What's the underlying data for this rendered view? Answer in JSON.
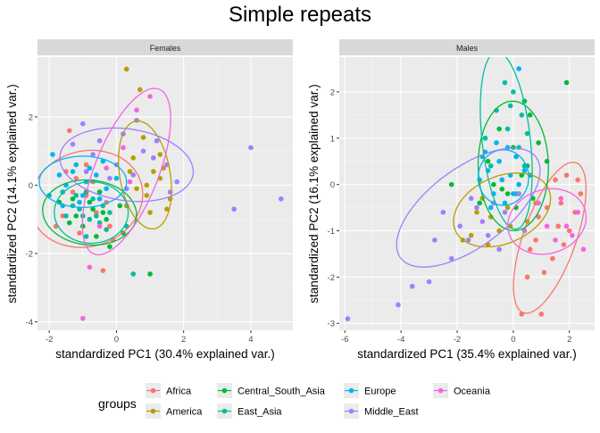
{
  "title": "Simple repeats",
  "legend": {
    "title": "groups",
    "items": [
      {
        "label": "Africa",
        "color": "#F8766D"
      },
      {
        "label": "America",
        "color": "#B79F00"
      },
      {
        "label": "Central_South_Asia",
        "color": "#00BA38"
      },
      {
        "label": "East_Asia",
        "color": "#00BF9F"
      },
      {
        "label": "Europe",
        "color": "#00B4F0"
      },
      {
        "label": "Middle_East",
        "color": "#9F7FFF"
      },
      {
        "label": "Oceania",
        "color": "#F564E3"
      }
    ]
  },
  "chart_data": [
    {
      "type": "scatter",
      "facet": "Females",
      "xlabel": "standardized PC1 (30.4% explained var.)",
      "ylabel": "standardized PC2 (14.1% explained var.)",
      "xlim": [
        -2.35,
        5.25
      ],
      "ylim": [
        -4.25,
        3.75
      ],
      "xticks": [
        -2,
        0,
        2,
        4
      ],
      "yticks": [
        -4,
        -2,
        0,
        2
      ],
      "groups": [
        {
          "name": "Africa",
          "color": "#F8766D",
          "ellipse": {
            "cx": -0.9,
            "cy": -0.4,
            "rx": 1.7,
            "ry": 1.4,
            "angle": 15
          },
          "points": [
            [
              -1.4,
              1.6
            ],
            [
              -0.9,
              0.6
            ],
            [
              -1.3,
              -0.2
            ],
            [
              -0.6,
              -0.8
            ],
            [
              -0.2,
              -1.2
            ],
            [
              -1.1,
              -1.4
            ],
            [
              -1.6,
              -0.9
            ],
            [
              -0.4,
              -2.5
            ],
            [
              -1.2,
              0.2
            ],
            [
              -0.9,
              -0.3
            ],
            [
              -0.3,
              -0.5
            ],
            [
              -1.5,
              0.4
            ],
            [
              -0.1,
              -1.6
            ],
            [
              -0.7,
              0.1
            ],
            [
              -1.8,
              -1.2
            ],
            [
              -0.8,
              -1.0
            ]
          ]
        },
        {
          "name": "America",
          "color": "#B79F00",
          "ellipse": {
            "cx": 0.85,
            "cy": 0.3,
            "rx": 0.75,
            "ry": 1.6,
            "angle": 10
          },
          "points": [
            [
              0.3,
              3.4
            ],
            [
              0.7,
              2.8
            ],
            [
              1.3,
              0.2
            ],
            [
              1.5,
              -0.7
            ],
            [
              0.5,
              0.8
            ],
            [
              1.1,
              0.4
            ],
            [
              0.9,
              -0.3
            ],
            [
              1.3,
              0.9
            ],
            [
              0.6,
              -0.1
            ],
            [
              0.8,
              1.4
            ],
            [
              1.6,
              -0.4
            ],
            [
              0.4,
              0.4
            ],
            [
              1.0,
              -0.8
            ],
            [
              1.4,
              0.5
            ],
            [
              0.3,
              -0.6
            ],
            [
              0.9,
              0.0
            ]
          ]
        },
        {
          "name": "Central_South_Asia",
          "color": "#00BA38",
          "ellipse": {
            "cx": -0.8,
            "cy": -0.8,
            "rx": 1.4,
            "ry": 0.95,
            "angle": -5
          },
          "points": [
            [
              -1.3,
              -0.4
            ],
            [
              -0.8,
              -0.5
            ],
            [
              -0.4,
              -0.8
            ],
            [
              -1.0,
              -1.2
            ],
            [
              -0.3,
              -1.0
            ],
            [
              -1.7,
              -0.5
            ],
            [
              -0.6,
              -1.5
            ],
            [
              0.2,
              -1.4
            ],
            [
              -1.2,
              -0.9
            ],
            [
              -0.9,
              -0.2
            ],
            [
              -0.5,
              -0.2
            ],
            [
              1.0,
              -2.6
            ],
            [
              0.1,
              -0.6
            ],
            [
              -1.4,
              -1.1
            ],
            [
              -0.2,
              -1.8
            ],
            [
              -0.7,
              -0.7
            ]
          ]
        },
        {
          "name": "East_Asia",
          "color": "#00BF9F",
          "ellipse": {
            "cx": -0.75,
            "cy": -0.8,
            "rx": 1.1,
            "ry": 0.9,
            "angle": 0
          },
          "points": [
            [
              -1.5,
              -0.9
            ],
            [
              -1.1,
              -0.7
            ],
            [
              -0.6,
              -0.9
            ],
            [
              -0.3,
              -1.3
            ],
            [
              -0.9,
              -1.5
            ],
            [
              -1.2,
              -0.3
            ],
            [
              -0.4,
              -0.6
            ],
            [
              0.3,
              -1.2
            ],
            [
              -0.8,
              -1.0
            ],
            [
              -0.7,
              -0.4
            ],
            [
              -1.3,
              -0.6
            ],
            [
              0.5,
              -2.6
            ],
            [
              -1.0,
              -0.9
            ],
            [
              -0.2,
              -0.8
            ],
            [
              -1.6,
              -0.2
            ],
            [
              -0.5,
              -1.1
            ]
          ]
        },
        {
          "name": "Europe",
          "color": "#00B4F0",
          "ellipse": {
            "cx": -1.0,
            "cy": 0.1,
            "rx": 1.3,
            "ry": 0.75,
            "angle": 0
          },
          "points": [
            [
              -1.9,
              0.9
            ],
            [
              -1.2,
              0.6
            ],
            [
              -0.6,
              0.3
            ],
            [
              -1.5,
              0.0
            ],
            [
              -0.3,
              -0.1
            ],
            [
              -1.0,
              -0.3
            ],
            [
              -1.7,
              0.3
            ],
            [
              -2.0,
              -0.3
            ],
            [
              -0.8,
              0.5
            ],
            [
              0.0,
              0.2
            ],
            [
              -1.3,
              0.4
            ],
            [
              -0.5,
              -0.4
            ],
            [
              -1.6,
              -0.6
            ],
            [
              -0.9,
              0.1
            ],
            [
              -0.4,
              0.7
            ],
            [
              -1.1,
              -0.5
            ]
          ]
        },
        {
          "name": "Middle_East",
          "color": "#9F7FFF",
          "ellipse": {
            "cx": 0.3,
            "cy": 0.6,
            "rx": 2.0,
            "ry": 1.05,
            "angle": -8
          },
          "points": [
            [
              -1.0,
              1.8
            ],
            [
              -0.5,
              1.3
            ],
            [
              0.2,
              1.5
            ],
            [
              0.8,
              1.0
            ],
            [
              1.5,
              0.6
            ],
            [
              1.8,
              0.1
            ],
            [
              0.0,
              0.6
            ],
            [
              -0.7,
              0.9
            ],
            [
              -1.3,
              1.2
            ],
            [
              0.5,
              0.3
            ],
            [
              1.1,
              0.8
            ],
            [
              0.3,
              -0.1
            ],
            [
              -0.2,
              0.2
            ],
            [
              4.0,
              1.1
            ],
            [
              3.5,
              -0.7
            ],
            [
              4.9,
              -0.4
            ],
            [
              1.6,
              -0.2
            ],
            [
              -0.9,
              0.4
            ],
            [
              0.6,
              1.9
            ],
            [
              1.2,
              1.3
            ]
          ]
        },
        {
          "name": "Oceania",
          "color": "#F564E3",
          "ellipse": {
            "cx": 0.3,
            "cy": 0.4,
            "rx": 2.6,
            "ry": 0.95,
            "angle": 68
          },
          "points": [
            [
              -1.0,
              -3.9
            ],
            [
              0.6,
              2.2
            ],
            [
              0.2,
              1.1
            ],
            [
              -0.3,
              0.5
            ],
            [
              0.4,
              0.1
            ],
            [
              -0.5,
              -1.2
            ],
            [
              1.0,
              2.6
            ],
            [
              -0.8,
              -2.4
            ]
          ]
        }
      ]
    },
    {
      "type": "scatter",
      "facet": "Males",
      "xlabel": "standardized PC1 (35.4% explained var.)",
      "ylabel": "standardized PC2 (16.1% explained var.)",
      "xlim": [
        -6.2,
        2.9
      ],
      "ylim": [
        -3.15,
        2.75
      ],
      "xticks": [
        -6,
        -4,
        -2,
        0,
        2
      ],
      "yticks": [
        -3,
        -2,
        -1,
        0,
        1,
        2
      ],
      "groups": [
        {
          "name": "Africa",
          "color": "#F8766D",
          "ellipse": {
            "cx": 1.3,
            "cy": -1.15,
            "rx": 1.9,
            "ry": 0.85,
            "angle": 55
          },
          "points": [
            [
              1.2,
              -0.5
            ],
            [
              1.6,
              -0.9
            ],
            [
              0.8,
              -1.2
            ],
            [
              1.9,
              0.2
            ],
            [
              2.2,
              -0.6
            ],
            [
              1.4,
              -1.6
            ],
            [
              0.5,
              -2.0
            ],
            [
              1.0,
              -2.8
            ],
            [
              0.3,
              -2.8
            ],
            [
              1.8,
              -1.3
            ],
            [
              2.4,
              -0.2
            ],
            [
              0.9,
              -0.7
            ],
            [
              1.5,
              0.1
            ],
            [
              2.0,
              -1.0
            ],
            [
              1.1,
              -1.9
            ],
            [
              0.6,
              -1.4
            ],
            [
              1.7,
              -0.4
            ],
            [
              2.3,
              0.1
            ]
          ]
        },
        {
          "name": "America",
          "color": "#B79F00",
          "ellipse": {
            "cx": -0.4,
            "cy": -0.55,
            "rx": 1.75,
            "ry": 0.75,
            "angle": 10
          },
          "points": [
            [
              -1.5,
              -1.1
            ],
            [
              -0.8,
              -0.7
            ],
            [
              -0.2,
              -0.5
            ],
            [
              -1.1,
              -0.3
            ],
            [
              0.5,
              -0.8
            ],
            [
              -0.5,
              -1.0
            ],
            [
              -1.8,
              -1.2
            ],
            [
              0.2,
              -0.2
            ],
            [
              -1.3,
              -0.6
            ],
            [
              -0.9,
              -1.3
            ],
            [
              0.8,
              -0.4
            ],
            [
              -0.1,
              -0.9
            ]
          ]
        },
        {
          "name": "Central_South_Asia",
          "color": "#00BA38",
          "ellipse": {
            "cx": 0.0,
            "cy": 0.4,
            "rx": 1.25,
            "ry": 1.4,
            "angle": 5
          },
          "points": [
            [
              -0.5,
              1.2
            ],
            [
              0.0,
              0.8
            ],
            [
              0.3,
              0.2
            ],
            [
              -0.9,
              0.5
            ],
            [
              0.6,
              1.5
            ],
            [
              -0.2,
              -0.2
            ],
            [
              0.9,
              0.9
            ],
            [
              -1.2,
              -0.4
            ],
            [
              1.2,
              0.5
            ],
            [
              0.4,
              1.8
            ],
            [
              -0.7,
              0.0
            ],
            [
              0.1,
              -0.5
            ],
            [
              -2.2,
              0.0
            ],
            [
              1.9,
              2.2
            ],
            [
              0.7,
              -0.3
            ],
            [
              -1.0,
              1.0
            ],
            [
              0.5,
              0.4
            ],
            [
              -0.4,
              -0.1
            ]
          ]
        },
        {
          "name": "East_Asia",
          "color": "#00BF9F",
          "ellipse": {
            "cx": -0.25,
            "cy": 0.95,
            "rx": 0.85,
            "ry": 1.95,
            "angle": 12
          },
          "points": [
            [
              -0.6,
              1.6
            ],
            [
              -0.2,
              1.2
            ],
            [
              0.2,
              0.8
            ],
            [
              -0.8,
              0.4
            ],
            [
              0.0,
              2.0
            ],
            [
              0.3,
              1.5
            ],
            [
              -0.4,
              0.1
            ],
            [
              -1.0,
              1.0
            ],
            [
              0.4,
              0.4
            ],
            [
              -0.3,
              2.2
            ],
            [
              0.1,
              -0.2
            ],
            [
              -0.7,
              -0.4
            ],
            [
              0.5,
              1.1
            ],
            [
              -1.1,
              0.6
            ],
            [
              -0.1,
              1.7
            ],
            [
              0.6,
              0.2
            ]
          ]
        },
        {
          "name": "Europe",
          "color": "#00B4F0",
          "ellipse": {
            "cx": -0.35,
            "cy": 0.15,
            "rx": 0.9,
            "ry": 0.6,
            "angle": 0
          },
          "points": [
            [
              -0.9,
              0.3
            ],
            [
              -0.5,
              0.5
            ],
            [
              -0.1,
              0.2
            ],
            [
              -0.7,
              -0.2
            ],
            [
              0.2,
              0.0
            ],
            [
              -1.0,
              0.7
            ],
            [
              -0.3,
              -0.4
            ],
            [
              0.1,
              0.6
            ],
            [
              -0.6,
              0.9
            ],
            [
              0.0,
              -0.2
            ],
            [
              -0.4,
              0.1
            ],
            [
              0.2,
              2.5
            ],
            [
              -1.2,
              0.1
            ],
            [
              0.4,
              0.3
            ],
            [
              -0.8,
              -0.5
            ],
            [
              -0.2,
              0.8
            ]
          ]
        },
        {
          "name": "Middle_East",
          "color": "#9F7FFF",
          "ellipse": {
            "cx": -1.6,
            "cy": -0.5,
            "rx": 2.7,
            "ry": 0.95,
            "angle": 20
          },
          "points": [
            [
              -5.9,
              -2.9
            ],
            [
              -4.1,
              -2.6
            ],
            [
              -3.6,
              -2.2
            ],
            [
              -3.0,
              -2.1
            ],
            [
              -2.2,
              -1.6
            ],
            [
              -1.6,
              -1.2
            ],
            [
              -1.1,
              -0.8
            ],
            [
              -0.7,
              -0.4
            ],
            [
              -0.3,
              -0.6
            ],
            [
              0.2,
              -0.2
            ],
            [
              -2.5,
              -0.6
            ],
            [
              -1.9,
              -0.9
            ],
            [
              -1.3,
              -0.5
            ],
            [
              -0.5,
              -1.4
            ],
            [
              0.4,
              -1.0
            ],
            [
              -2.8,
              -1.2
            ],
            [
              -0.9,
              -1.1
            ],
            [
              -1.5,
              -0.3
            ]
          ]
        },
        {
          "name": "Oceania",
          "color": "#F564E3",
          "ellipse": {
            "cx": 1.2,
            "cy": -0.8,
            "rx": 1.4,
            "ry": 0.7,
            "angle": 5
          },
          "points": [
            [
              1.9,
              -0.9
            ],
            [
              2.3,
              -0.6
            ],
            [
              1.5,
              -1.2
            ],
            [
              2.5,
              -1.4
            ],
            [
              0.9,
              -0.4
            ],
            [
              1.7,
              -0.3
            ],
            [
              2.1,
              -1.1
            ],
            [
              1.2,
              -0.9
            ]
          ]
        }
      ]
    }
  ]
}
